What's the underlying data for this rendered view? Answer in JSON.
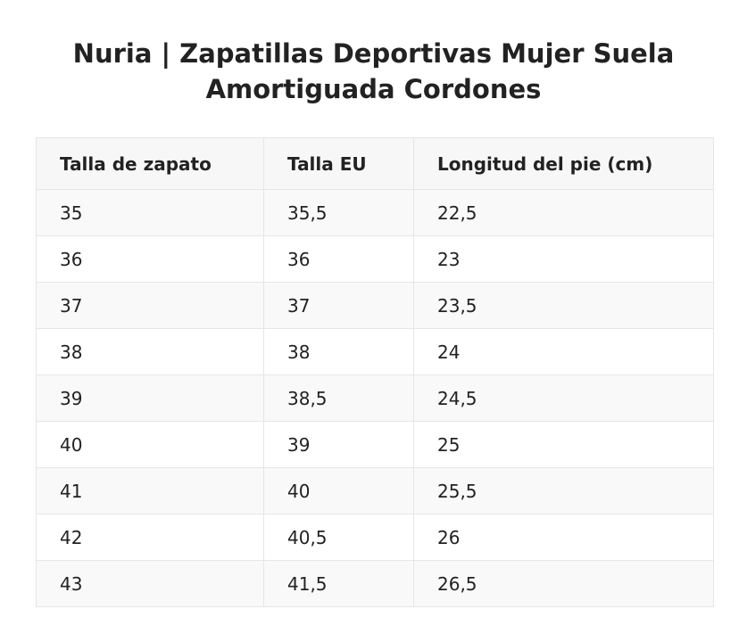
{
  "title": "Nuria | Zapatillas Deportivas Mujer Suela Amortiguada Cordones",
  "table": {
    "headers": [
      "Talla de zapato",
      "Talla EU",
      "Longitud del pie (cm)"
    ],
    "rows": [
      [
        "35",
        "35,5",
        "22,5"
      ],
      [
        "36",
        "36",
        "23"
      ],
      [
        "37",
        "37",
        "23,5"
      ],
      [
        "38",
        "38",
        "24"
      ],
      [
        "39",
        "38,5",
        "24,5"
      ],
      [
        "40",
        "39",
        "25"
      ],
      [
        "41",
        "40",
        "25,5"
      ],
      [
        "42",
        "40,5",
        "26"
      ],
      [
        "43",
        "41,5",
        "26,5"
      ]
    ]
  }
}
